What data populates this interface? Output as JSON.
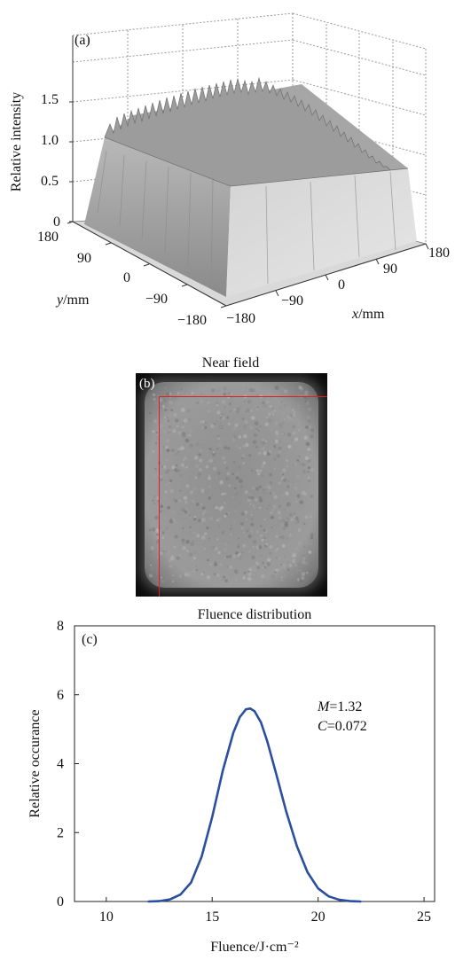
{
  "panel_a": {
    "label": "(a)",
    "zlabel": "Relative intensity",
    "z_ticks": [
      "1.5",
      "1.0",
      "0.5",
      "0"
    ],
    "y_label_italic": "y",
    "y_label_unit": "/mm",
    "x_label_italic": "x",
    "x_label_unit": "/mm",
    "y_ticks": [
      "180",
      "90",
      "0",
      "−90",
      "−180"
    ],
    "x_ticks": [
      "−180",
      "−90",
      "0",
      "90",
      "180"
    ]
  },
  "panel_b": {
    "label": "(b)",
    "title": "Near field",
    "colors": {
      "frame": "#0b0b0b",
      "roi_rect": "#e02020"
    }
  },
  "chart_data": {
    "type": "line",
    "title": "Fluence distribution",
    "label": "(c)",
    "xlabel": "Fluence/J·cm⁻²",
    "ylabel": "Relative occurance",
    "xlim": [
      8.5,
      25.5
    ],
    "ylim": [
      0,
      8
    ],
    "x_ticks": [
      10,
      15,
      20,
      25
    ],
    "y_ticks": [
      0,
      2,
      4,
      6,
      8
    ],
    "grid": false,
    "annotations": [
      {
        "italic": "M",
        "text": "=1.32"
      },
      {
        "italic": "C",
        "text": "=0.072"
      }
    ],
    "series": [
      {
        "color": "#2b4f9e",
        "x": [
          12.0,
          12.5,
          13.0,
          13.5,
          14.0,
          14.5,
          15.0,
          15.5,
          16.0,
          16.3,
          16.6,
          16.8,
          17.0,
          17.3,
          17.6,
          18.0,
          18.5,
          19.0,
          19.5,
          20.0,
          20.5,
          21.0,
          21.5,
          22.0
        ],
        "y": [
          0.0,
          0.01,
          0.06,
          0.2,
          0.55,
          1.3,
          2.45,
          3.8,
          4.9,
          5.35,
          5.58,
          5.6,
          5.52,
          5.2,
          4.65,
          3.75,
          2.6,
          1.6,
          0.85,
          0.38,
          0.15,
          0.05,
          0.01,
          0.0
        ]
      }
    ]
  }
}
